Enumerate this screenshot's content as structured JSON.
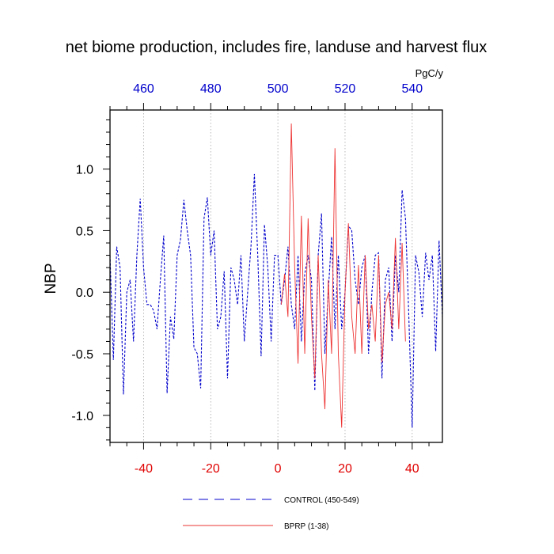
{
  "chart_data": {
    "type": "line",
    "title": "net biome production, includes fire, landuse and harvest flux",
    "ylabel": "NBP",
    "units_label": "PgC/y",
    "xlim": [
      -50,
      49
    ],
    "ylim": [
      -1.22,
      1.48
    ],
    "top_xlim": [
      450,
      549
    ],
    "bottom_ticks": [
      "-40",
      "-20",
      "0",
      "20",
      "40"
    ],
    "bottom_tick_values": [
      -40,
      -20,
      0,
      20,
      40
    ],
    "top_ticks": [
      "460",
      "480",
      "500",
      "520",
      "540"
    ],
    "top_tick_values": [
      460,
      480,
      500,
      520,
      540
    ],
    "left_ticks": [
      "1.0",
      "0.5",
      "0.0",
      "-0.5",
      "-1.0"
    ],
    "left_tick_values": [
      1.0,
      0.5,
      0.0,
      -0.5,
      -1.0
    ],
    "grid_x": true,
    "grid_values": [
      -40,
      -20,
      0,
      20,
      40
    ],
    "legend_position": "bottom",
    "series": [
      {
        "name": "CONTROL (450-549)",
        "color": "#0000cc",
        "style": "dashed",
        "x": [
          -50,
          -49,
          -48,
          -47,
          -46,
          -45,
          -44,
          -43,
          -42,
          -41,
          -40,
          -39,
          -38,
          -37,
          -36,
          -35,
          -34,
          -33,
          -32,
          -31,
          -30,
          -29,
          -28,
          -27,
          -26,
          -25,
          -24,
          -23,
          -22,
          -21,
          -20,
          -19,
          -18,
          -17,
          -16,
          -15,
          -14,
          -13,
          -12,
          -11,
          -10,
          -9,
          -8,
          -7,
          -6,
          -5,
          -4,
          -3,
          -2,
          -1,
          0,
          1,
          2,
          3,
          4,
          5,
          6,
          7,
          8,
          9,
          10,
          11,
          12,
          13,
          14,
          15,
          16,
          17,
          18,
          19,
          20,
          21,
          22,
          23,
          24,
          25,
          26,
          27,
          28,
          29,
          30,
          31,
          32,
          33,
          34,
          35,
          36,
          37,
          38,
          39,
          40,
          41,
          42,
          43,
          44,
          45,
          46,
          47,
          48,
          49
        ],
        "y": [
          0.3,
          -0.55,
          0.37,
          0.2,
          -0.83,
          0.0,
          0.1,
          -0.4,
          0.3,
          0.76,
          0.2,
          -0.1,
          -0.1,
          -0.15,
          -0.3,
          0.1,
          0.46,
          -0.82,
          -0.2,
          -0.38,
          0.3,
          0.43,
          0.75,
          0.5,
          0.3,
          -0.45,
          -0.5,
          -0.78,
          0.6,
          0.77,
          0.3,
          0.5,
          -0.3,
          -0.2,
          0.17,
          -0.7,
          0.2,
          0.1,
          -0.1,
          0.3,
          -0.4,
          0.0,
          0.38,
          0.96,
          0.3,
          -0.52,
          0.55,
          0.2,
          -0.4,
          0.3,
          0.3,
          -0.1,
          0.1,
          0.37,
          -0.1,
          -0.3,
          0.3,
          -0.4,
          0.15,
          0.3,
          0.1,
          -0.8,
          0.3,
          0.64,
          -0.5,
          0.0,
          0.45,
          -0.3,
          0.3,
          -0.3,
          0.0,
          0.54,
          0.5,
          0.1,
          -0.1,
          0.2,
          0.3,
          -0.5,
          0.0,
          0.3,
          0.32,
          -0.7,
          0.1,
          0.2,
          -0.4,
          0.3,
          0.0,
          0.83,
          0.6,
          -0.2,
          -1.1,
          0.3,
          0.16,
          -0.2,
          0.32,
          0.1,
          0.3,
          -0.48,
          0.42,
          -0.2
        ]
      },
      {
        "name": "BPRP (1-38)",
        "color": "#ee3333",
        "style": "solid",
        "x": [
          1,
          2,
          3,
          4,
          5,
          6,
          7,
          8,
          9,
          10,
          11,
          12,
          13,
          14,
          15,
          16,
          17,
          18,
          19,
          20,
          21,
          22,
          23,
          24,
          25,
          26,
          27,
          28,
          29,
          30,
          31,
          32,
          33,
          34,
          35,
          36,
          37,
          38
        ],
        "y": [
          -0.1,
          0.15,
          -0.2,
          1.37,
          0.2,
          -0.58,
          0.62,
          -0.5,
          0.6,
          -0.2,
          -0.7,
          0.3,
          -0.5,
          -0.95,
          0.1,
          -0.5,
          1.17,
          -0.5,
          -1.1,
          0.0,
          0.56,
          -0.2,
          -0.5,
          0.22,
          -0.5,
          0.3,
          -0.3,
          -0.1,
          -0.4,
          0.3,
          -0.57,
          -0.1,
          0.0,
          -0.3,
          0.44,
          -0.3,
          0.4,
          -0.4
        ]
      }
    ]
  }
}
